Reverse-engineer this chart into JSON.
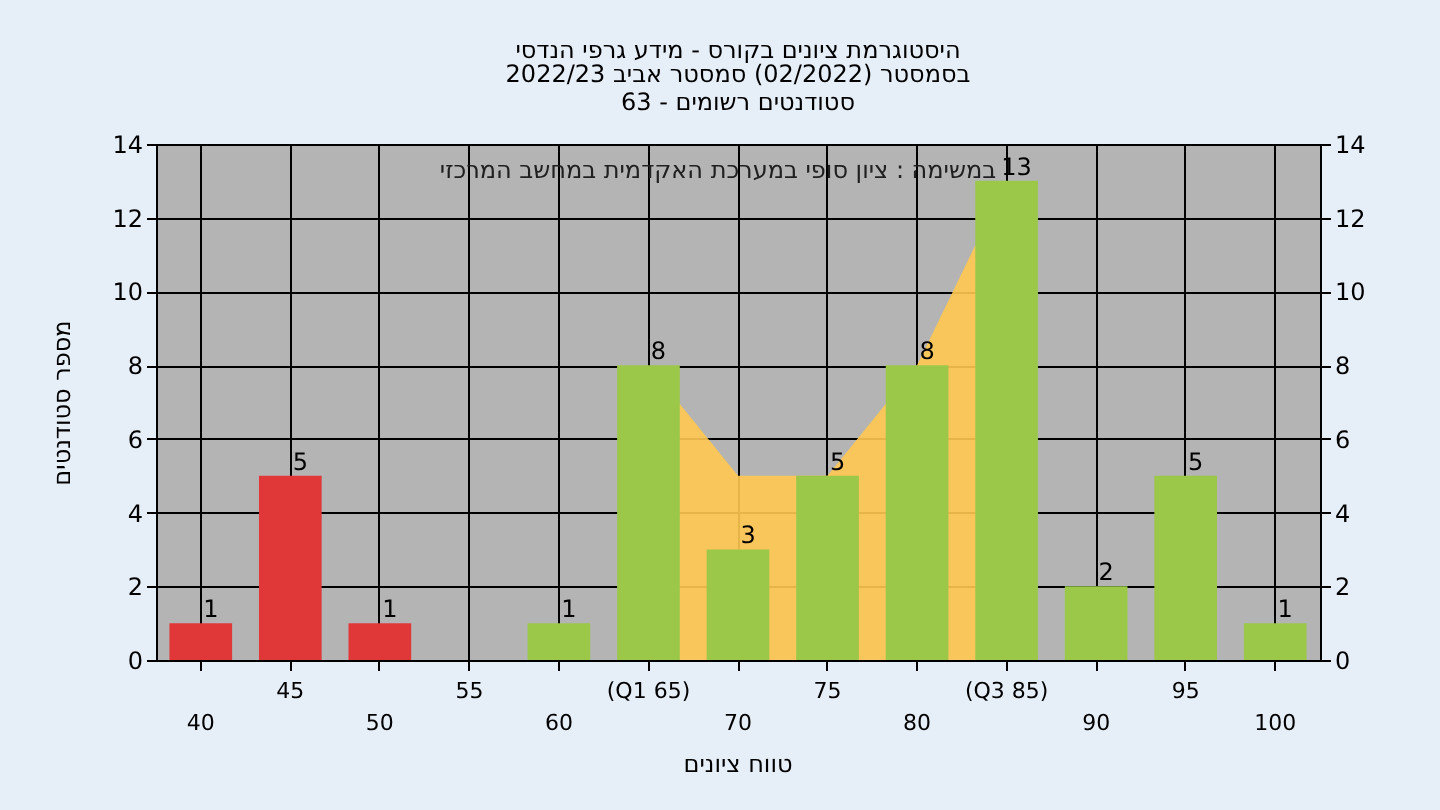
{
  "chart_data": {
    "type": "bar",
    "title": "היסטוגרמת ציונים בקורס - מידע גרפי הנדסי",
    "subtitle": "בסמסטר  (02/2022)  סמסטר אביב 2022/23\nסטודנטים רשומים - 63",
    "xlabel": "טווח ציונים",
    "ylabel": "מספר סטודנטים",
    "annotations": [
      "במשימה : ציון סופי במערכת האקדמית במחשב המרכזי"
    ],
    "categories": [
      "40",
      "45",
      "50",
      "55",
      "60",
      "(Q1 65)",
      "70",
      "75",
      "80",
      "(Q3 85)",
      "90",
      "95",
      "100"
    ],
    "series": [
      {
        "type": "area",
        "color": "#ffc850",
        "values": [
          null,
          null,
          null,
          null,
          null,
          8,
          5,
          5,
          8,
          13,
          null,
          null,
          null
        ]
      },
      {
        "colors": [
          "#e03838",
          "#e03838",
          "#e03838",
          "#e03838",
          "#9cc84a",
          "#9cc84a",
          "#9cc84a",
          "#9cc84a",
          "#9cc84a",
          "#9cc84a",
          "#9cc84a",
          "#9cc84a",
          "#9cc84a"
        ],
        "values": [
          1,
          5,
          1,
          0,
          1,
          8,
          3,
          5,
          8,
          13,
          2,
          5,
          1
        ],
        "value_labels": [
          "1",
          "5",
          "1",
          null,
          "1",
          "8",
          "3",
          "5",
          "8",
          "13",
          "2",
          "5",
          "1"
        ]
      }
    ],
    "ylim": [
      0,
      14
    ],
    "yticks": [
      0,
      2,
      4,
      6,
      8,
      10,
      12,
      14
    ],
    "y2lim": [
      0,
      14
    ],
    "y2ticks": [
      0,
      2,
      4,
      6,
      8,
      10,
      12,
      14
    ],
    "grid": true,
    "legend": false
  }
}
